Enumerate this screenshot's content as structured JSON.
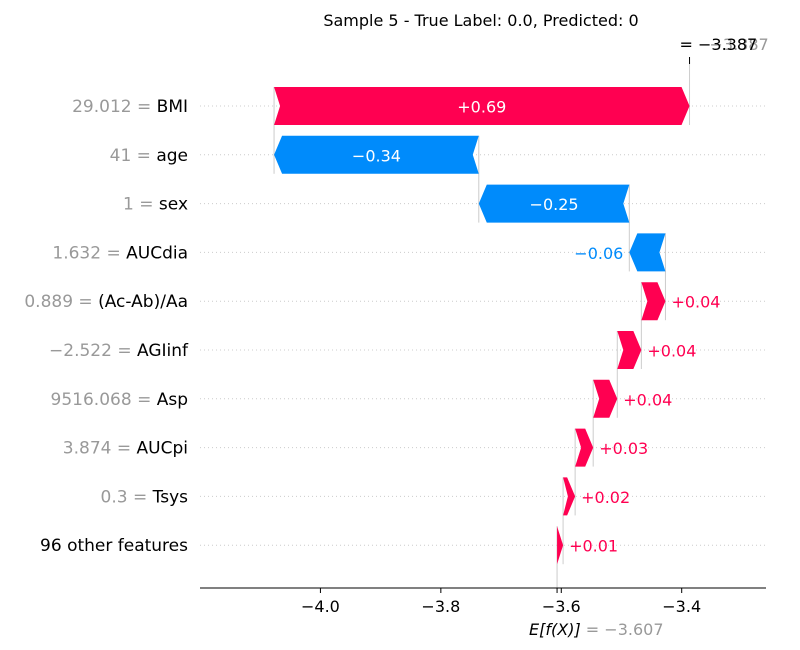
{
  "chart_data": {
    "type": "waterfall",
    "title": "Sample 5 - True Label: 0.0, Predicted: 0",
    "fx_label": "= −3.387",
    "fx_value": -3.387,
    "fx_ghost_label": "−3.387",
    "base_label_prefix": "E[f(X)]",
    "base_label_value": " = −3.607",
    "base_value": -3.607,
    "xlim": [
      -4.2,
      -3.26
    ],
    "xticks": [
      -4.0,
      -3.8,
      -3.6,
      -3.4
    ],
    "xtick_labels": [
      "−4.0",
      "−3.8",
      "−3.6",
      "−3.4"
    ],
    "features": [
      {
        "value_text": "29.012 = ",
        "name": "BMI",
        "contribution": 0.69,
        "label": "+0.69"
      },
      {
        "value_text": "41 = ",
        "name": "age",
        "contribution": -0.34,
        "label": "−0.34"
      },
      {
        "value_text": "1 = ",
        "name": "sex",
        "contribution": -0.25,
        "label": "−0.25"
      },
      {
        "value_text": "1.632 = ",
        "name": "AUCdia",
        "contribution": -0.06,
        "label": "−0.06"
      },
      {
        "value_text": "0.889 = ",
        "name": "(Ac-Ab)/Aa",
        "contribution": 0.04,
        "label": "+0.04"
      },
      {
        "value_text": "−2.522 = ",
        "name": "AGIinf",
        "contribution": 0.04,
        "label": "+0.04"
      },
      {
        "value_text": "9516.068 = ",
        "name": "Asp",
        "contribution": 0.04,
        "label": "+0.04"
      },
      {
        "value_text": "3.874 = ",
        "name": "AUCpi",
        "contribution": 0.03,
        "label": "+0.03"
      },
      {
        "value_text": "0.3 = ",
        "name": "Tsys",
        "contribution": 0.02,
        "label": "+0.02"
      },
      {
        "value_text": "",
        "name": "96 other features",
        "contribution": 0.01,
        "label": "+0.01"
      }
    ],
    "colors": {
      "positive": "#ff0051",
      "negative": "#008bfb",
      "value_text": "#999999",
      "text": "#000000",
      "grid": "#cccccc"
    }
  }
}
